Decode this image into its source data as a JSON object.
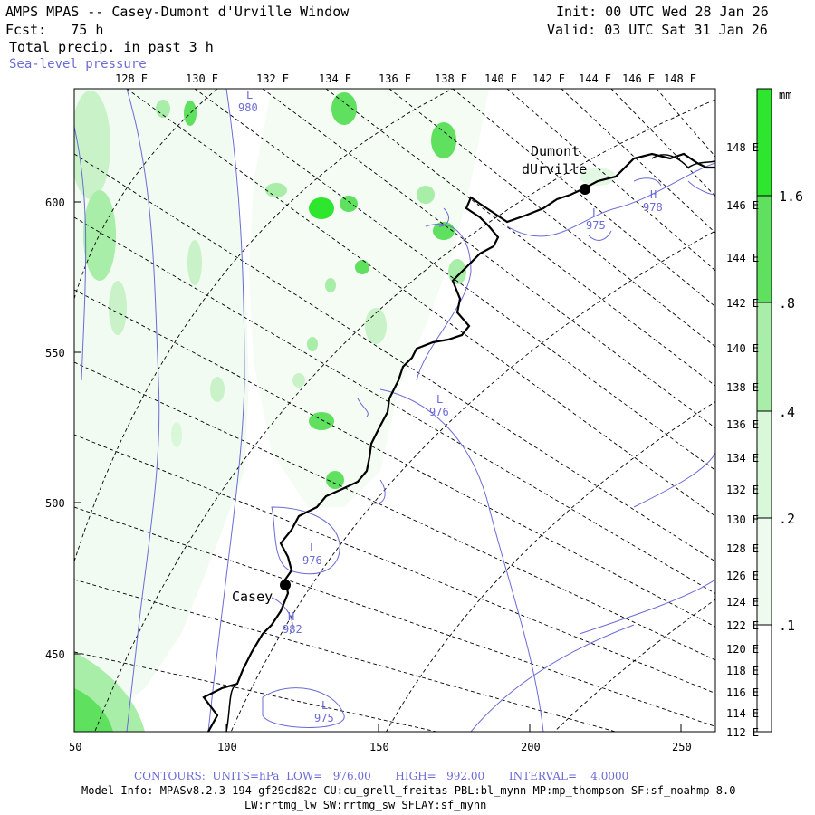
{
  "header": {
    "line1_left": "AMPS MPAS -- Casey-Dumont d'Urville Window",
    "line2_left": "Fcst:   75 h",
    "init": "Init: 00 UTC Wed 28 Jan 26",
    "valid": "Valid: 03 UTC Sat 31 Jan 26",
    "field1": "Total precip. in past 3 h",
    "field2": "Sea-level pressure"
  },
  "colors": {
    "pressure_contour": "#6b6bd6",
    "precip_light": "#d9f7d9",
    "precip_mid": "#a8eda8",
    "precip_strong": "#5fe05f",
    "precip_max": "#2ee62e"
  },
  "top_lon_labels": [
    "128 E",
    "130 E",
    "132 E",
    "134 E",
    "136 E",
    "138 E",
    "140 E",
    "142 E",
    "144 E",
    "146 E",
    "148 E"
  ],
  "right_lon_labels": [
    "148 E",
    "146 E",
    "144 E",
    "142 E",
    "140 E",
    "138 E",
    "136 E",
    "134 E",
    "132 E",
    "130 E",
    "128 E",
    "126 E",
    "124 E",
    "122 E",
    "120 E",
    "118 E",
    "116 E",
    "114 E",
    "112 E"
  ],
  "left_y_labels": [
    "600",
    "550",
    "500",
    "450"
  ],
  "bottom_x_labels": [
    "50",
    "100",
    "150",
    "200",
    "250"
  ],
  "colorbar": {
    "unit": "mm",
    "labels": [
      "1.6",
      ".8",
      ".4",
      ".2",
      ".1"
    ]
  },
  "stations": [
    {
      "name": "Casey"
    },
    {
      "name": "Dumont"
    },
    {
      "name": "dUrville"
    }
  ],
  "pressure_labels": [
    {
      "sym": "L",
      "val": "980"
    },
    {
      "sym": "L",
      "val": "975"
    },
    {
      "sym": "H",
      "val": "978"
    },
    {
      "sym": "L",
      "val": "976"
    },
    {
      "sym": "L",
      "val": "976"
    },
    {
      "sym": "H",
      "val": "982"
    },
    {
      "sym": "L",
      "val": "975"
    }
  ],
  "footer": {
    "contours": "CONTOURS:  UNITS=hPa  LOW=   976.00       HIGH=   992.00       INTERVAL=    4.0000",
    "model1": "Model Info: MPASv8.2.3-194-gf29cd82c CU:cu_grell_freitas PBL:bl_mynn MP:mp_thompson SF:sf_noahmp 8.0",
    "model2": "LW:rrtmg_lw SW:rrtmg_sw SFLAY:sf_mynn"
  }
}
